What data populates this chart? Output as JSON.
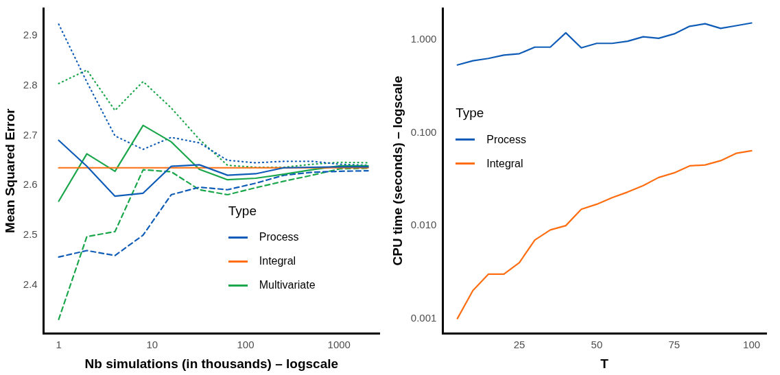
{
  "chart_data": [
    {
      "type": "line",
      "xlabel": "Nb simulations (in thousands) – logscale",
      "ylabel": "Mean Squared Error",
      "legend_title": "Type",
      "legend": "bottom right",
      "grid": false,
      "log": "x",
      "x": [
        1,
        2,
        4,
        8,
        16,
        32,
        64,
        128,
        256,
        512,
        1024,
        2048
      ],
      "xlim": [
        0.69,
        2700
      ],
      "xticks": [
        1,
        10,
        100,
        1000
      ],
      "ylim": [
        2.303,
        2.955
      ],
      "yticks": [
        2.4,
        2.5,
        2.6,
        2.7,
        2.8,
        2.9
      ],
      "series": [
        {
          "name": "Process",
          "color": "#0f5cb8",
          "line_style": "solid",
          "values": [
            2.69,
            2.638,
            2.578,
            2.584,
            2.638,
            2.641,
            2.62,
            2.623,
            2.635,
            2.636,
            2.637,
            2.637
          ]
        },
        {
          "name": "Integral",
          "color": "#ff6d10",
          "line_style": "solid",
          "values": [
            2.635,
            2.635,
            2.635,
            2.635,
            2.635,
            2.635,
            2.635,
            2.635,
            2.635,
            2.635,
            2.635,
            2.635
          ]
        },
        {
          "name": "Multivariate",
          "color": "#1aa64a",
          "line_style": "solid",
          "values": [
            2.568,
            2.663,
            2.628,
            2.72,
            2.687,
            2.632,
            2.611,
            2.614,
            2.622,
            2.631,
            2.639,
            2.639
          ]
        },
        {
          "color": "#0f5cb8",
          "line_style": "dotted",
          "values": [
            2.923,
            2.807,
            2.699,
            2.672,
            2.696,
            2.685,
            2.65,
            2.645,
            2.648,
            2.648,
            2.642,
            2.64
          ]
        },
        {
          "color": "#1aa64a",
          "line_style": "dotted",
          "values": [
            2.804,
            2.831,
            2.75,
            2.808,
            2.755,
            2.692,
            2.64,
            2.636,
            2.636,
            2.642,
            2.646,
            2.645
          ]
        },
        {
          "color": "#0f5cb8",
          "line_style": "dashed",
          "values": [
            2.456,
            2.469,
            2.459,
            2.5,
            2.581,
            2.596,
            2.591,
            2.604,
            2.62,
            2.626,
            2.628,
            2.629
          ]
        },
        {
          "color": "#1aa64a",
          "line_style": "dashed",
          "values": [
            2.331,
            2.497,
            2.507,
            2.631,
            2.627,
            2.591,
            2.581,
            2.595,
            2.608,
            2.62,
            2.633,
            2.634
          ]
        }
      ]
    },
    {
      "type": "line",
      "xlabel": "T",
      "ylabel": "CPU time (seconds) – logscale",
      "legend_title": "Type",
      "legend": "left",
      "grid": false,
      "log": "y",
      "x": [
        5,
        10,
        15,
        20,
        25,
        30,
        35,
        40,
        45,
        50,
        55,
        60,
        65,
        70,
        75,
        80,
        85,
        90,
        95,
        100
      ],
      "xlim": [
        0.25,
        104.75
      ],
      "xticks": [
        25,
        50,
        75,
        100
      ],
      "ylim": [
        0.000693,
        2.19
      ],
      "yticks": [
        {
          "value": 0.001,
          "label": "0.001"
        },
        {
          "value": 0.01,
          "label": "0.010"
        },
        {
          "value": 0.1,
          "label": "0.100"
        },
        {
          "value": 1,
          "label": "1.000"
        }
      ],
      "series": [
        {
          "name": "Process",
          "color": "#0f5cb8",
          "line_style": "solid",
          "values": [
            0.537,
            0.596,
            0.631,
            0.685,
            0.71,
            0.835,
            0.835,
            1.19,
            0.82,
            0.917,
            0.917,
            0.966,
            1.08,
            1.04,
            1.16,
            1.4,
            1.49,
            1.33,
            1.42,
            1.52
          ]
        },
        {
          "name": "Integral",
          "color": "#ff6d10",
          "line_style": "solid",
          "values": [
            0.001,
            0.002,
            0.003,
            0.003,
            0.004,
            0.007,
            0.009,
            0.01,
            0.015,
            0.017,
            0.02,
            0.023,
            0.027,
            0.033,
            0.037,
            0.044,
            0.045,
            0.05,
            0.06,
            0.064
          ]
        }
      ]
    }
  ]
}
